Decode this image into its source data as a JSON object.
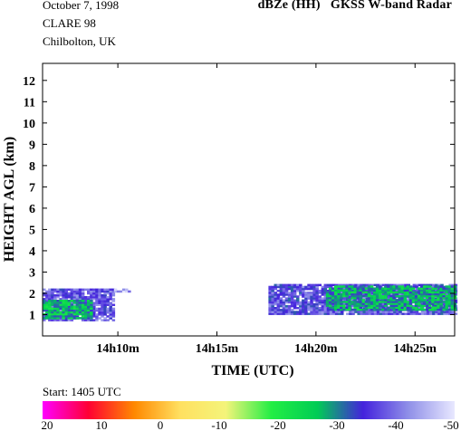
{
  "header": {
    "date": "October  7, 1998",
    "campaign": "CLARE 98",
    "site": "Chilbolton, UK",
    "product": "dBZe (HH)",
    "instrument": "GKSS  W-band Radar"
  },
  "colorbar": {
    "start_label": "Start: 1405 UTC",
    "tick_labels": [
      "20",
      "10",
      "0",
      "-10",
      "-20",
      "-30",
      "-40",
      "-50"
    ],
    "range": [
      20,
      -50
    ],
    "gradient": [
      "#ff00ff",
      "#ff0033",
      "#ff8800",
      "#ffe060",
      "#f4f47a",
      "#22ee44",
      "#00cc55",
      "#4422dd",
      "#9090e8",
      "#e8e8ff"
    ]
  },
  "chart_data": {
    "type": "heatmap",
    "title": "dBZe (HH)   GKSS  W-band Radar",
    "xlabel": "TIME (UTC)",
    "ylabel": "HEIGHT AGL (km)",
    "x_unit": "minutes past 14h00 UTC",
    "xlim": [
      6.2,
      27.0
    ],
    "ylim": [
      0.0,
      12.8
    ],
    "xticks": [
      10,
      15,
      20,
      25
    ],
    "xtick_labels": [
      "14h10m",
      "14h15m",
      "14h20m",
      "14h25m"
    ],
    "yticks": [
      1,
      2,
      3,
      4,
      5,
      6,
      7,
      8,
      9,
      10,
      11,
      12
    ],
    "ytick_labels": [
      "1",
      "2",
      "3",
      "4",
      "5",
      "6",
      "7",
      "8",
      "9",
      "10",
      "11",
      "12"
    ],
    "colorscale_dbz": [
      20,
      -50
    ],
    "regions": [
      {
        "t0": 6.2,
        "t1": 9.8,
        "h0": 0.7,
        "h1": 2.2,
        "dbz": -38
      },
      {
        "t0": 6.2,
        "t1": 8.6,
        "h0": 0.8,
        "h1": 1.7,
        "dbz": -27
      },
      {
        "t0": 9.8,
        "t1": 10.6,
        "h0": 2.05,
        "h1": 2.2,
        "dbz": -45
      },
      {
        "t0": 17.6,
        "t1": 27.0,
        "h0": 1.0,
        "h1": 2.4,
        "dbz": -37
      },
      {
        "t0": 20.5,
        "t1": 27.0,
        "h0": 1.2,
        "h1": 2.3,
        "dbz": -28
      }
    ]
  }
}
